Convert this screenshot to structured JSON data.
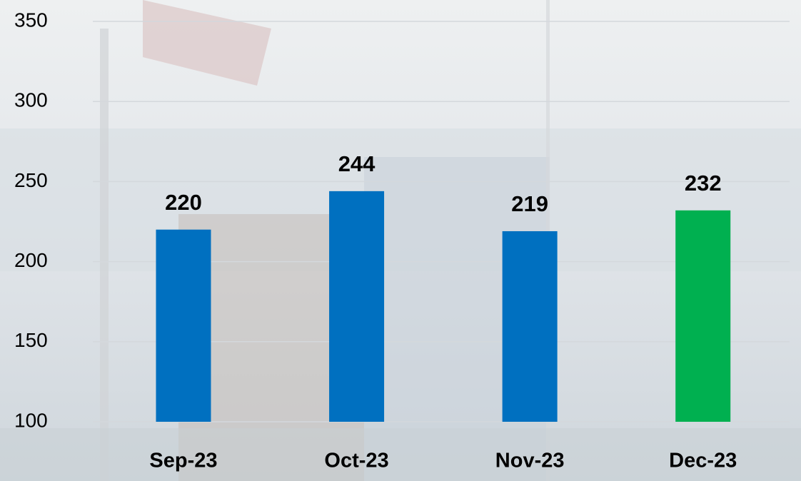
{
  "chart_data": {
    "type": "bar",
    "categories": [
      "Sep-23",
      "Oct-23",
      "Nov-23",
      "Dec-23"
    ],
    "values": [
      220,
      244,
      219,
      232
    ],
    "colors": [
      "#0070c0",
      "#0070c0",
      "#0070c0",
      "#00b050"
    ],
    "ylim": [
      100,
      350
    ],
    "yticks": [
      100,
      150,
      200,
      250,
      300,
      350
    ],
    "grid": true
  }
}
